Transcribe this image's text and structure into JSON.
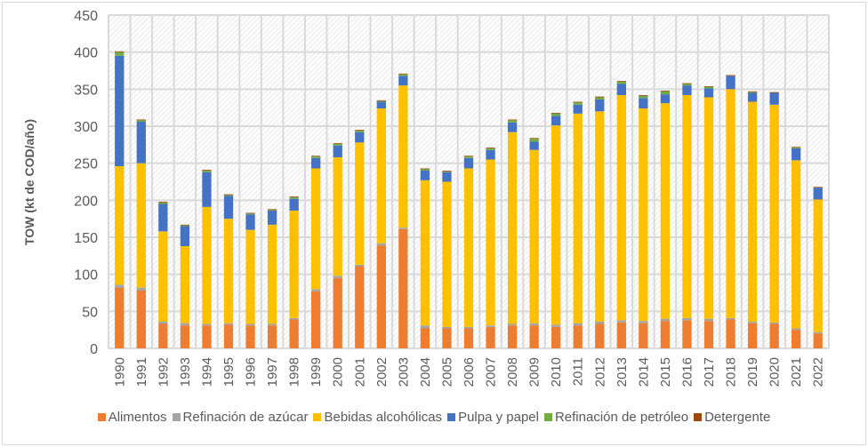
{
  "chart_data": {
    "type": "bar",
    "stacked": true,
    "title": "",
    "xlabel": "",
    "ylabel": "TOW  (kt de COD/año)",
    "ylim": [
      0,
      450
    ],
    "yticks": [
      0,
      50,
      100,
      150,
      200,
      250,
      300,
      350,
      400,
      450
    ],
    "grid": true,
    "legend_position": "bottom",
    "categories": [
      "1990",
      "1991",
      "1992",
      "1993",
      "1994",
      "1995",
      "1996",
      "1997",
      "1998",
      "1999",
      "2000",
      "2001",
      "2002",
      "2003",
      "2004",
      "2005",
      "2006",
      "2007",
      "2008",
      "2009",
      "2010",
      "2011",
      "2012",
      "2013",
      "2014",
      "2015",
      "2016",
      "2017",
      "2018",
      "2019",
      "2020",
      "2021",
      "2022"
    ],
    "series": [
      {
        "name": "Alimentos",
        "color": "#ED7D31",
        "values": [
          82,
          78,
          33,
          31,
          31,
          32,
          31,
          31,
          39,
          77,
          95,
          111,
          139,
          161,
          27,
          27,
          27,
          29,
          31,
          31,
          29,
          31,
          33,
          35,
          34,
          37,
          38,
          37,
          39,
          34,
          33,
          25,
          20
        ]
      },
      {
        "name": "Refinación de azúcar",
        "color": "#A5A5A5",
        "values": [
          4,
          4,
          3,
          3,
          2,
          2,
          2,
          2,
          2,
          3,
          3,
          2,
          3,
          2,
          4,
          2,
          2,
          2,
          2,
          3,
          3,
          3,
          3,
          3,
          3,
          3,
          3,
          3,
          2,
          2,
          2,
          2,
          2
        ]
      },
      {
        "name": "Bebidas alcohólicas",
        "color": "#FFC000",
        "values": [
          160,
          168,
          122,
          104,
          158,
          141,
          127,
          134,
          145,
          163,
          160,
          165,
          182,
          192,
          196,
          196,
          214,
          224,
          259,
          234,
          269,
          283,
          284,
          304,
          287,
          291,
          301,
          299,
          309,
          297,
          294,
          227,
          179
        ]
      },
      {
        "name": "Pulpa y papel",
        "color": "#4472C4",
        "values": [
          149,
          56,
          37,
          27,
          47,
          31,
          21,
          19,
          16,
          14,
          16,
          14,
          9,
          13,
          13,
          13,
          14,
          13,
          13,
          11,
          13,
          12,
          16,
          15,
          14,
          12,
          13,
          12,
          18,
          12,
          16,
          16,
          16
        ]
      },
      {
        "name": "Refinación de petróleo",
        "color": "#70AD47",
        "values": [
          5,
          2,
          2,
          1,
          2,
          1,
          1,
          1,
          2,
          2,
          2,
          2,
          1,
          2,
          2,
          1,
          2,
          2,
          3,
          4,
          3,
          3,
          3,
          3,
          3,
          4,
          2,
          2,
          0,
          1,
          0,
          1,
          0
        ]
      },
      {
        "name": "Detergente",
        "color": "#9E480E",
        "values": [
          1,
          1,
          1,
          1,
          1,
          1,
          1,
          1,
          1,
          1,
          1,
          1,
          1,
          1,
          1,
          1,
          1,
          1,
          1,
          1,
          1,
          1,
          1,
          1,
          1,
          1,
          1,
          1,
          1,
          1,
          1,
          1,
          1
        ]
      }
    ]
  }
}
